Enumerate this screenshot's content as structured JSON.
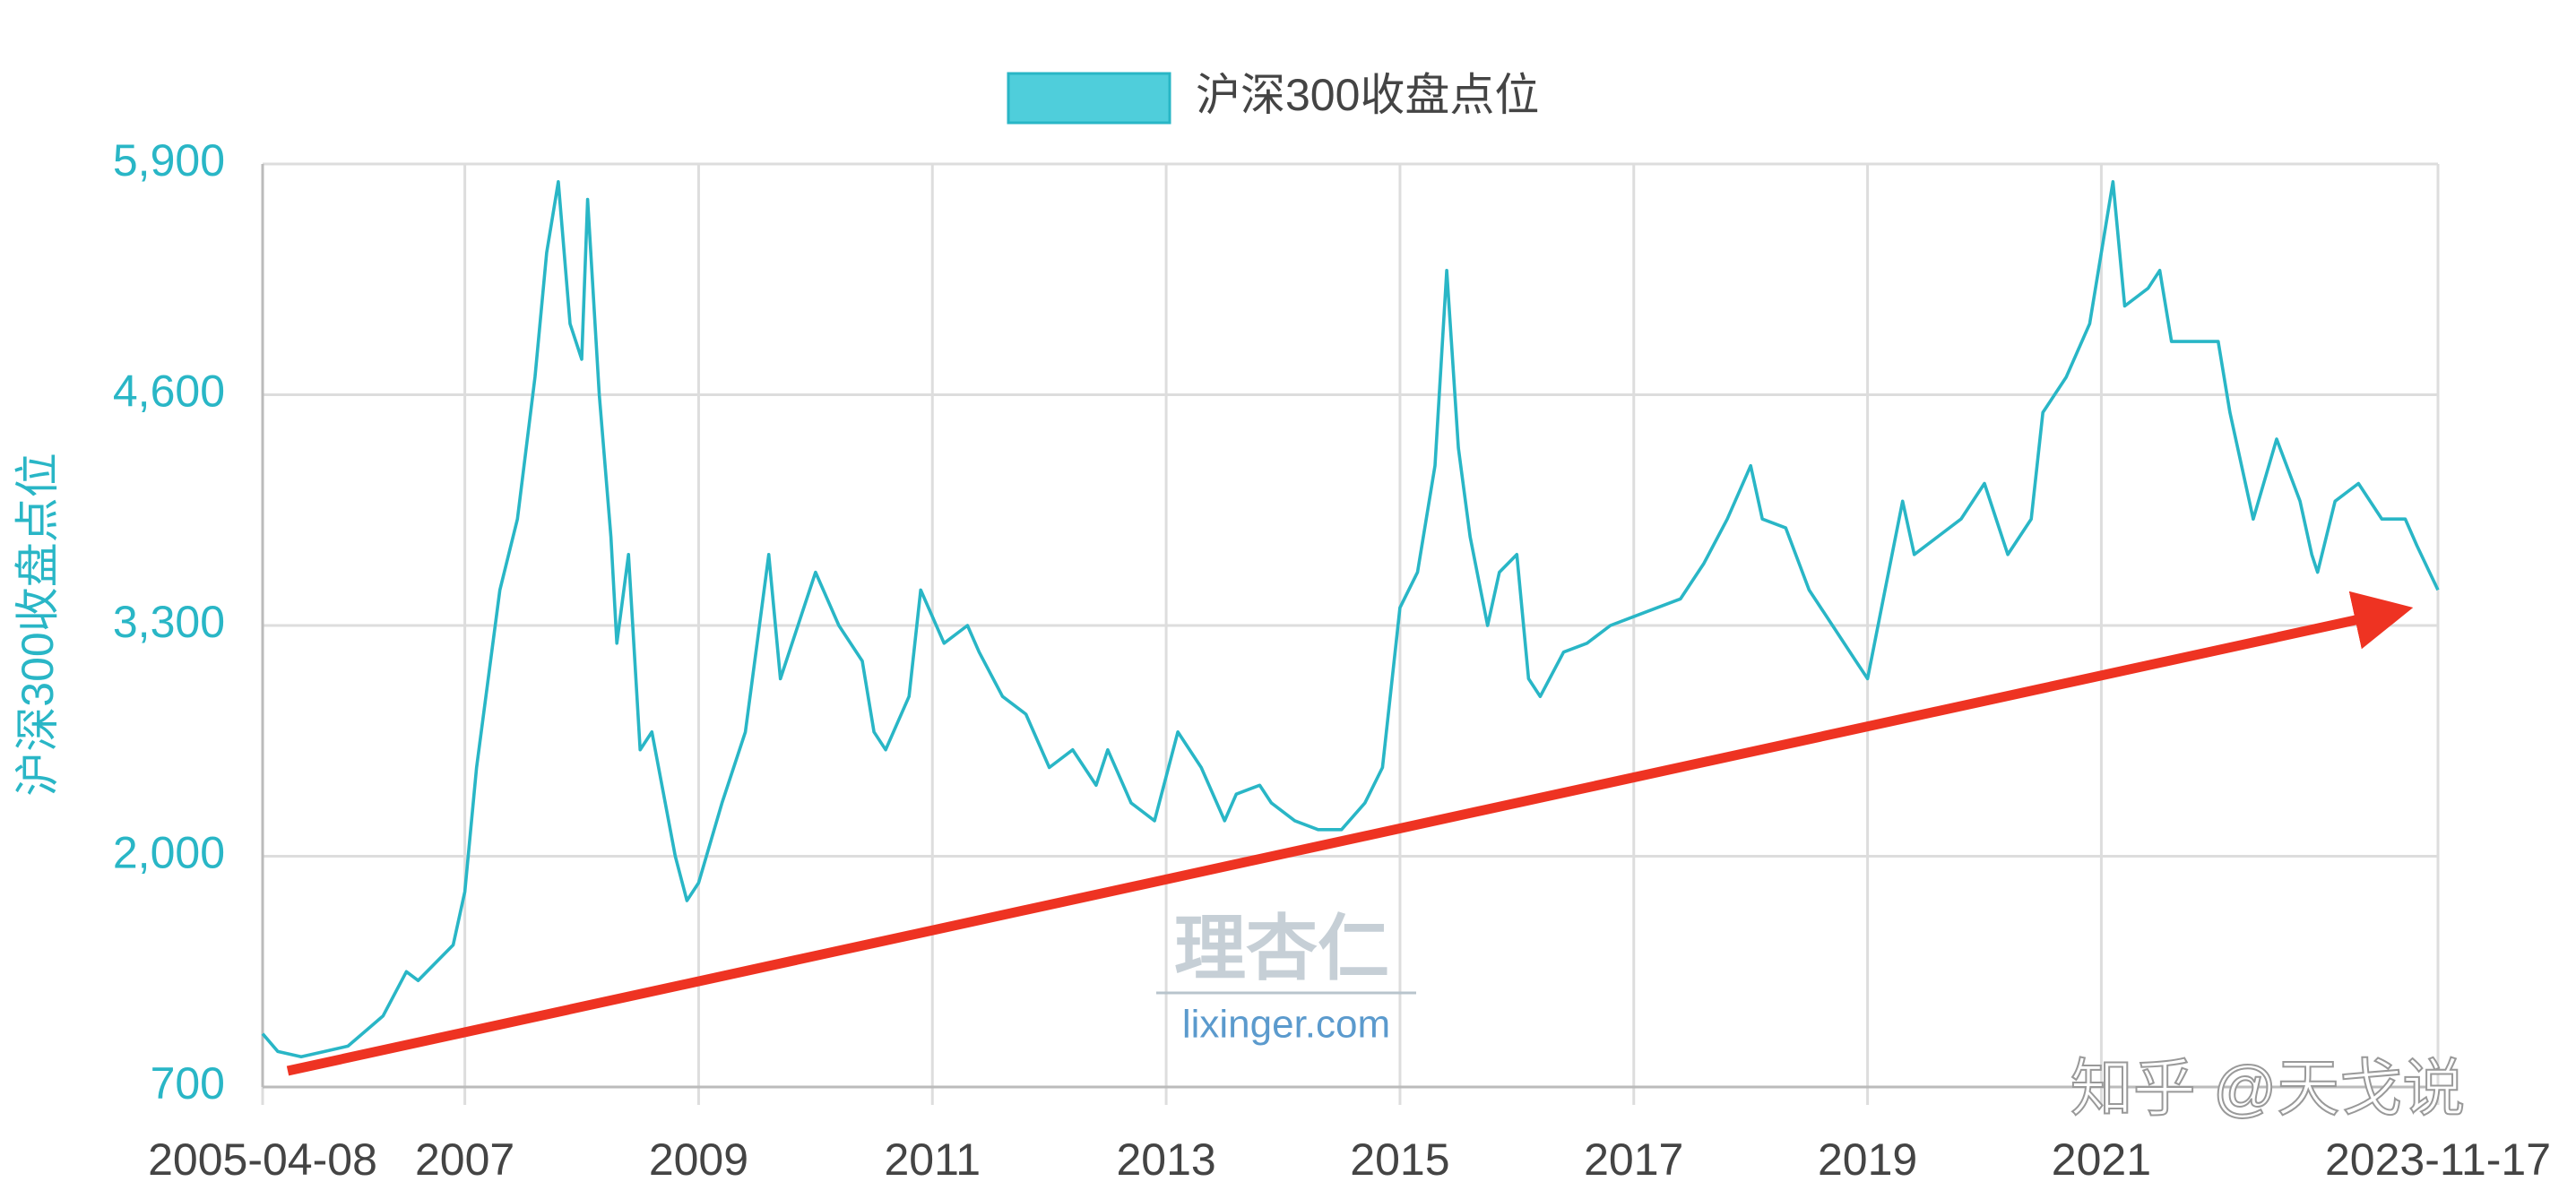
{
  "chart_data": {
    "type": "line",
    "y_label": "沪深300收盘点位",
    "annotations": [
      "理杏仁",
      "lixinger.com",
      "知乎 @天戈说"
    ],
    "x": [
      2005.27,
      2005.4,
      2005.6,
      2005.8,
      2006.0,
      2006.3,
      2006.5,
      2006.6,
      2006.9,
      2007.0,
      2007.1,
      2007.3,
      2007.45,
      2007.6,
      2007.7,
      2007.8,
      2007.9,
      2008.0,
      2008.05,
      2008.15,
      2008.25,
      2008.3,
      2008.4,
      2008.5,
      2008.6,
      2008.8,
      2008.9,
      2009.0,
      2009.2,
      2009.4,
      2009.5,
      2009.6,
      2009.7,
      2009.9,
      2010.0,
      2010.2,
      2010.4,
      2010.5,
      2010.6,
      2010.8,
      2010.9,
      2011.1,
      2011.3,
      2011.4,
      2011.6,
      2011.8,
      2012.0,
      2012.2,
      2012.4,
      2012.5,
      2012.7,
      2012.9,
      2013.0,
      2013.1,
      2013.3,
      2013.5,
      2013.6,
      2013.8,
      2013.9,
      2014.1,
      2014.3,
      2014.5,
      2014.7,
      2014.85,
      2015.0,
      2015.15,
      2015.3,
      2015.4,
      2015.5,
      2015.6,
      2015.75,
      2015.85,
      2016.0,
      2016.1,
      2016.2,
      2016.4,
      2016.6,
      2016.8,
      2017.0,
      2017.2,
      2017.4,
      2017.6,
      2017.8,
      2018.0,
      2018.1,
      2018.3,
      2018.5,
      2018.7,
      2018.9,
      2019.0,
      2019.15,
      2019.3,
      2019.4,
      2019.6,
      2019.8,
      2020.0,
      2020.2,
      2020.4,
      2020.5,
      2020.7,
      2020.9,
      2021.1,
      2021.2,
      2021.4,
      2021.5,
      2021.6,
      2021.8,
      2022.0,
      2022.1,
      2022.3,
      2022.5,
      2022.7,
      2022.8,
      2022.85,
      2023.0,
      2023.2,
      2023.4,
      2023.6,
      2023.7,
      2023.88
    ],
    "series": [
      {
        "name": "沪深300收盘点位",
        "color": "#29b6c6",
        "values": [
          1000,
          900,
          870,
          900,
          930,
          1100,
          1350,
          1300,
          1500,
          1800,
          2500,
          3500,
          3900,
          4700,
          5400,
          5800,
          5000,
          4800,
          5700,
          4600,
          3800,
          3200,
          3700,
          2600,
          2700,
          2000,
          1750,
          1850,
          2300,
          2700,
          3200,
          3700,
          3000,
          3400,
          3600,
          3300,
          3100,
          2700,
          2600,
          2900,
          3500,
          3200,
          3300,
          3150,
          2900,
          2800,
          2500,
          2600,
          2400,
          2600,
          2300,
          2200,
          2450,
          2700,
          2500,
          2200,
          2350,
          2400,
          2300,
          2200,
          2150,
          2150,
          2300,
          2500,
          3400,
          3600,
          4200,
          5300,
          4300,
          3800,
          3300,
          3600,
          3700,
          3000,
          2900,
          3150,
          3200,
          3300,
          3350,
          3400,
          3450,
          3650,
          3900,
          4200,
          3900,
          3850,
          3500,
          3300,
          3100,
          3000,
          3500,
          4000,
          3700,
          3800,
          3900,
          4100,
          3700,
          3900,
          4500,
          4700,
          5000,
          5800,
          5100,
          5200,
          5300,
          4900,
          4900,
          4900,
          4500,
          3900,
          4350,
          4000,
          3700,
          3600,
          4000,
          4100,
          3900,
          3900,
          3750,
          3500
        ]
      }
    ],
    "xlim": [
      2005.27,
      2023.88
    ],
    "xticks": [
      {
        "value": 2005.27,
        "label": "2005-04-08"
      },
      2007,
      2009,
      2011,
      2013,
      2015,
      2017,
      2019,
      2021,
      {
        "value": 2023.88,
        "label": "2023-11-17"
      }
    ],
    "ylim": [
      700,
      5900
    ],
    "yticks": [
      700,
      {
        "value": 2000,
        "label": "2,000"
      },
      {
        "value": 3300,
        "label": "3,300"
      },
      {
        "value": 4600,
        "label": "4,600"
      },
      {
        "value": 5900,
        "label": "5,900"
      }
    ],
    "grid": true
  }
}
